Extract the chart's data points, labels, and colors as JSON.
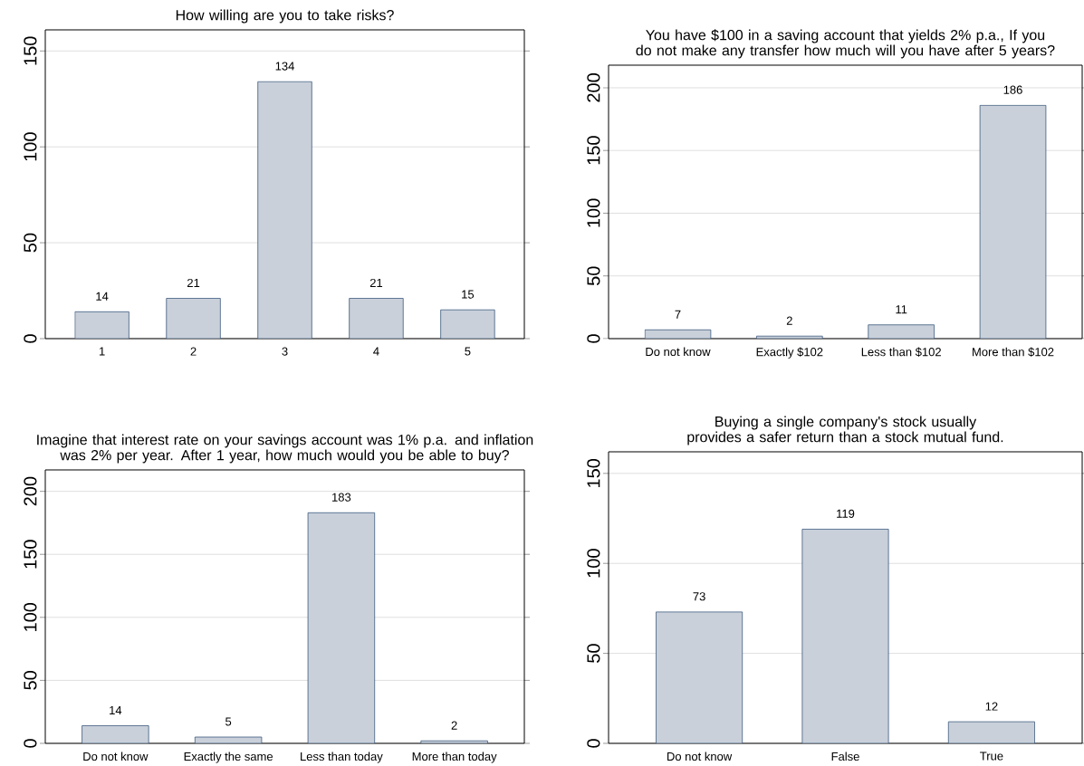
{
  "chart_data": [
    {
      "type": "bar",
      "title": "How willing  are you to take risks?",
      "categories": [
        "1",
        "2",
        "3",
        "4",
        "5"
      ],
      "values": [
        14,
        21,
        134,
        21,
        15
      ],
      "color": "#c9d0da",
      "ylim": [
        0,
        161
      ],
      "yticks": [
        0,
        50,
        100,
        150
      ],
      "grid": "y",
      "data_labels": true
    },
    {
      "type": "bar",
      "title": "You have $100 in a saving account that yields 2% p.a., If you do not make any transfer how much will you have after 5 years?",
      "categories": [
        "Do not know",
        "Exactly $102",
        "Less than $102",
        "More than $102"
      ],
      "values": [
        7,
        2,
        11,
        186
      ],
      "color": "#c9d0da",
      "ylim": [
        0,
        218
      ],
      "yticks": [
        0,
        50,
        100,
        150,
        200
      ],
      "grid": "y",
      "data_labels": true
    },
    {
      "type": "bar",
      "title": "Imagine that interest rate on your savings account was 1% p.a. and inflation was 2% per year. After 1 year, how much would you be able to buy?",
      "categories": [
        "Do not know",
        "Exactly the same",
        "Less than today",
        "More than today"
      ],
      "values": [
        14,
        5,
        183,
        2
      ],
      "color": "#c9d0da",
      "ylim": [
        0,
        217
      ],
      "yticks": [
        0,
        50,
        100,
        150,
        200
      ],
      "grid": "y",
      "data_labels": true
    },
    {
      "type": "bar",
      "title": "Buying a single company's stock usually provides a safer return than a stock mutual fund.",
      "categories": [
        "Do not know",
        "False",
        "True"
      ],
      "values": [
        73,
        119,
        12
      ],
      "color": "#c9d0da",
      "ylim": [
        0,
        162
      ],
      "yticks": [
        0,
        50,
        100,
        150
      ],
      "grid": "y",
      "data_labels": true
    }
  ]
}
